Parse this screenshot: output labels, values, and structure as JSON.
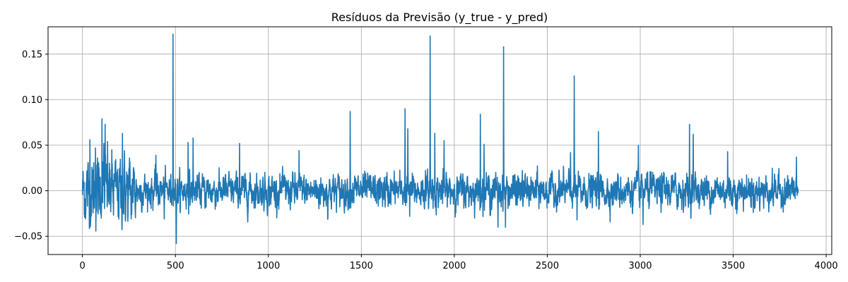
{
  "chart_data": {
    "type": "line",
    "title": "Resíduos da Previsão (y_true - y_pred)",
    "xlabel": "",
    "ylabel": "",
    "xlim": [
      -185,
      4030
    ],
    "ylim": [
      -0.07,
      0.18
    ],
    "xticks": [
      0,
      500,
      1000,
      1500,
      2000,
      2500,
      3000,
      3500,
      4000
    ],
    "xtick_labels": [
      "0",
      "500",
      "1000",
      "1500",
      "2000",
      "2500",
      "3000",
      "3500",
      "4000"
    ],
    "yticks": [
      -0.05,
      0.0,
      0.05,
      0.1,
      0.15
    ],
    "ytick_labels": [
      "−0.05",
      "0.00",
      "0.05",
      "0.10",
      "0.15"
    ],
    "grid": true,
    "color": "#1f77b4",
    "series": [
      {
        "n_points": 3850,
        "x_start": 0,
        "x_end": 3849,
        "baseline_noise_std": 0.009,
        "early_noise_std": 0.018,
        "early_region_end": 290,
        "spikes": [
          {
            "x": 40,
            "y": 0.056
          },
          {
            "x": 70,
            "y": 0.047
          },
          {
            "x": 105,
            "y": 0.079
          },
          {
            "x": 115,
            "y": 0.052
          },
          {
            "x": 122,
            "y": 0.073
          },
          {
            "x": 135,
            "y": 0.054
          },
          {
            "x": 160,
            "y": 0.03
          },
          {
            "x": 215,
            "y": 0.063
          },
          {
            "x": 245,
            "y": -0.027
          },
          {
            "x": 262,
            "y": -0.031
          },
          {
            "x": 395,
            "y": 0.039
          },
          {
            "x": 440,
            "y": -0.031
          },
          {
            "x": 487,
            "y": 0.172
          },
          {
            "x": 505,
            "y": -0.058
          },
          {
            "x": 568,
            "y": 0.053
          },
          {
            "x": 595,
            "y": 0.058
          },
          {
            "x": 845,
            "y": 0.052
          },
          {
            "x": 1165,
            "y": 0.044
          },
          {
            "x": 1320,
            "y": -0.03
          },
          {
            "x": 1440,
            "y": 0.087
          },
          {
            "x": 1735,
            "y": 0.09
          },
          {
            "x": 1750,
            "y": 0.068
          },
          {
            "x": 1760,
            "y": -0.028
          },
          {
            "x": 1870,
            "y": 0.17
          },
          {
            "x": 1895,
            "y": 0.063
          },
          {
            "x": 1945,
            "y": 0.055
          },
          {
            "x": 2140,
            "y": 0.084
          },
          {
            "x": 2160,
            "y": 0.051
          },
          {
            "x": 2235,
            "y": -0.04
          },
          {
            "x": 2265,
            "y": 0.158
          },
          {
            "x": 2275,
            "y": -0.04
          },
          {
            "x": 2625,
            "y": 0.042
          },
          {
            "x": 2645,
            "y": 0.126
          },
          {
            "x": 2660,
            "y": -0.032
          },
          {
            "x": 2775,
            "y": 0.065
          },
          {
            "x": 2990,
            "y": 0.05
          },
          {
            "x": 3015,
            "y": -0.037
          },
          {
            "x": 3265,
            "y": 0.073
          },
          {
            "x": 3285,
            "y": 0.062
          },
          {
            "x": 3470,
            "y": 0.043
          },
          {
            "x": 3840,
            "y": 0.037
          }
        ]
      }
    ]
  }
}
